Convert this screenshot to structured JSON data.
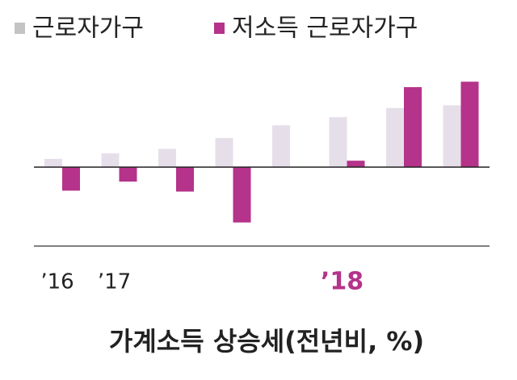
{
  "chart_data": {
    "type": "bar",
    "title": "가계소득 상승세(전년비, %)",
    "categories": [
      "’16",
      "’17",
      null,
      null,
      null,
      "’18",
      null,
      null
    ],
    "highlight_category": 5,
    "series": [
      {
        "name": "근로자가구",
        "color": "#e6dfea",
        "values": [
          0.9,
          1.5,
          2.0,
          3.2,
          4.6,
          5.5,
          6.5,
          6.8
        ]
      },
      {
        "name": "저소득 근로자가구",
        "color": "#b5338a",
        "values": [
          -2.6,
          -1.6,
          -2.7,
          -6.1,
          null,
          0.7,
          8.8,
          9.4
        ]
      }
    ],
    "ylim": [
      -8.7,
      10.4
    ]
  }
}
